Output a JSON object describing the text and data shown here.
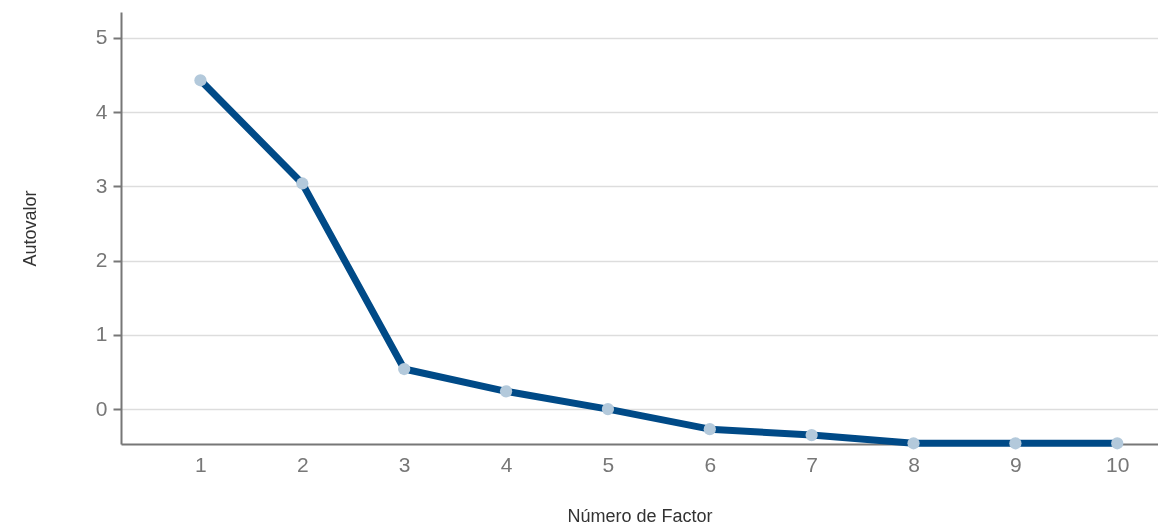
{
  "chart_data": {
    "type": "line",
    "xlabel": "Número de Factor",
    "ylabel": "Autovalor",
    "x": [
      1,
      2,
      3,
      4,
      5,
      6,
      7,
      8,
      9,
      10
    ],
    "series": [
      {
        "color": "#004a87",
        "values": [
          4.43,
          3.04,
          0.54,
          0.24,
          0,
          -0.27,
          -0.35,
          -0.46,
          -0.46,
          -0.46
        ]
      }
    ],
    "xlim": [
      0.22,
      10.4
    ],
    "xticks": [
      1,
      2,
      3,
      4,
      5,
      6,
      7,
      8,
      9,
      10
    ],
    "ylim": [
      -0.47,
      5.35
    ],
    "yticks": [
      0,
      1,
      2,
      3,
      4,
      5
    ],
    "grid": "y",
    "marker": "circle",
    "line_style": "solid"
  }
}
